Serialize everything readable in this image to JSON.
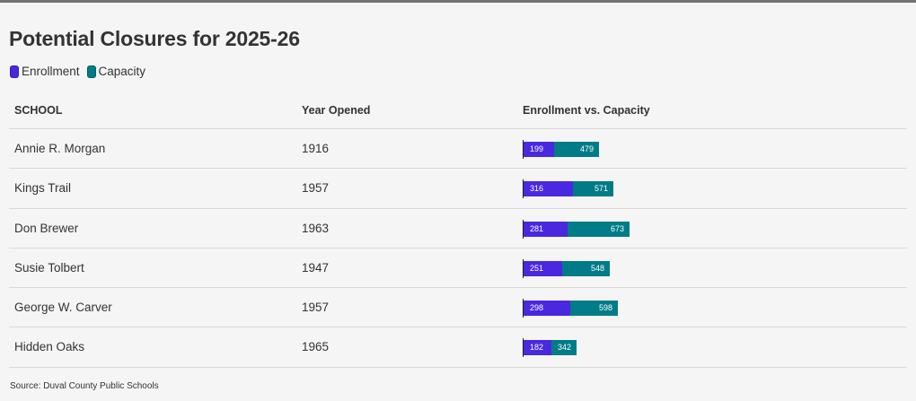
{
  "title": "Potential Closures for 2025-26",
  "legend": [
    {
      "label": "Enrollment",
      "color": "#4a28e0"
    },
    {
      "label": "Capacity",
      "color": "#007b88"
    }
  ],
  "headers": {
    "school": "SCHOOL",
    "year": "Year Opened",
    "bar": "Enrollment vs. Capacity"
  },
  "rows": [
    {
      "school": "Annie R. Morgan",
      "year": "1916",
      "enrollment": 199,
      "capacity": 479
    },
    {
      "school": "Kings Trail",
      "year": "1957",
      "enrollment": 316,
      "capacity": 571
    },
    {
      "school": "Don Brewer",
      "year": "1963",
      "enrollment": 281,
      "capacity": 673
    },
    {
      "school": "Susie Tolbert",
      "year": "1947",
      "enrollment": 251,
      "capacity": 548
    },
    {
      "school": "George W. Carver",
      "year": "1957",
      "enrollment": 298,
      "capacity": 598
    },
    {
      "school": "Hidden Oaks",
      "year": "1965",
      "enrollment": 182,
      "capacity": 342
    }
  ],
  "source": "Source: Duval County Public Schools",
  "chart_data": {
    "type": "bar",
    "title": "Potential Closures for 2025-26",
    "categories": [
      "Annie R. Morgan",
      "Kings Trail",
      "Don Brewer",
      "Susie Tolbert",
      "George W. Carver",
      "Hidden Oaks"
    ],
    "series": [
      {
        "name": "Enrollment",
        "values": [
          199,
          316,
          281,
          251,
          298,
          182
        ]
      },
      {
        "name": "Capacity",
        "values": [
          479,
          571,
          673,
          548,
          598,
          342
        ]
      }
    ],
    "xlabel": "Enrollment vs. Capacity",
    "ylabel": "",
    "legend": "top-left"
  }
}
